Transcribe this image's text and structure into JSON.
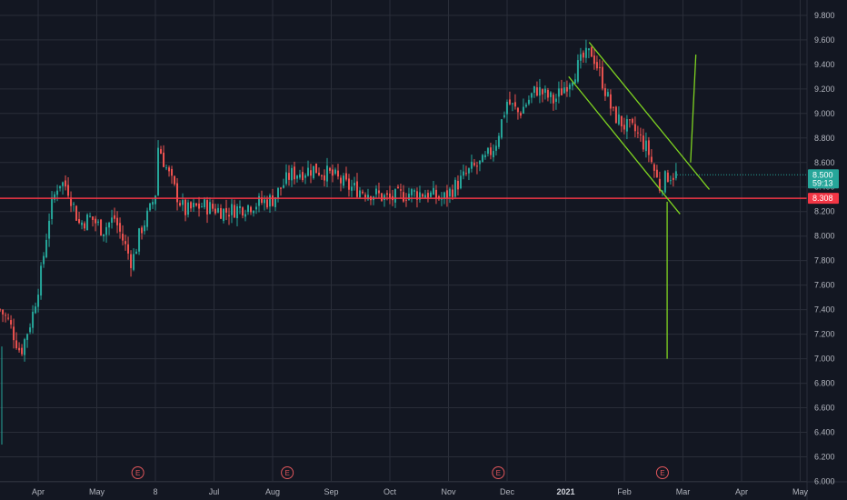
{
  "chart_data": {
    "type": "candlestick",
    "price_axis": {
      "ticks": [
        "9.800",
        "9.600",
        "9.400",
        "9.200",
        "9.000",
        "8.800",
        "8.600",
        "8.400",
        "8.200",
        "8.000",
        "7.800",
        "7.600",
        "7.400",
        "7.200",
        "7.000",
        "6.800",
        "6.600",
        "6.400",
        "6.200",
        "6.000"
      ],
      "ylim": [
        6.0,
        9.9
      ],
      "scale": "linear"
    },
    "time_axis": {
      "ticks": [
        {
          "label": "Apr",
          "x_month": 3.0
        },
        {
          "label": "May",
          "x_month": 4.0
        },
        {
          "label": "8",
          "x_month": 5.0
        },
        {
          "label": "Jul",
          "x_month": 6.0
        },
        {
          "label": "Aug",
          "x_month": 7.0
        },
        {
          "label": "Sep",
          "x_month": 8.0
        },
        {
          "label": "Oct",
          "x_month": 9.0
        },
        {
          "label": "Nov",
          "x_month": 10.0
        },
        {
          "label": "Dec",
          "x_month": 11.0
        },
        {
          "label": "2021",
          "x_month": 12.0,
          "bold": true
        },
        {
          "label": "Feb",
          "x_month": 13.0
        },
        {
          "label": "Mar",
          "x_month": 14.0
        },
        {
          "label": "Apr",
          "x_month": 15.0
        },
        {
          "label": "May",
          "x_month": 16.0
        }
      ]
    },
    "anchors": [
      [
        2.35,
        7.4
      ],
      [
        2.5,
        7.3
      ],
      [
        2.7,
        7.05
      ],
      [
        2.9,
        7.35
      ],
      [
        3.05,
        7.7
      ],
      [
        3.2,
        8.2
      ],
      [
        3.35,
        8.45
      ],
      [
        3.5,
        8.4
      ],
      [
        3.7,
        8.1
      ],
      [
        3.9,
        8.15
      ],
      [
        4.1,
        8.05
      ],
      [
        4.3,
        8.15
      ],
      [
        4.5,
        7.9
      ],
      [
        4.6,
        7.78
      ],
      [
        4.75,
        8.05
      ],
      [
        4.9,
        8.2
      ],
      [
        5.0,
        8.35
      ],
      [
        5.05,
        8.75
      ],
      [
        5.15,
        8.6
      ],
      [
        5.35,
        8.35
      ],
      [
        5.5,
        8.2
      ],
      [
        5.8,
        8.25
      ],
      [
        6.2,
        8.2
      ],
      [
        6.6,
        8.25
      ],
      [
        7.0,
        8.3
      ],
      [
        7.3,
        8.5
      ],
      [
        7.7,
        8.55
      ],
      [
        8.0,
        8.5
      ],
      [
        8.3,
        8.4
      ],
      [
        8.7,
        8.35
      ],
      [
        9.0,
        8.3
      ],
      [
        9.3,
        8.35
      ],
      [
        9.6,
        8.35
      ],
      [
        9.9,
        8.3
      ],
      [
        10.2,
        8.45
      ],
      [
        10.4,
        8.55
      ],
      [
        10.6,
        8.6
      ],
      [
        10.8,
        8.75
      ],
      [
        11.0,
        9.1
      ],
      [
        11.2,
        9.0
      ],
      [
        11.5,
        9.2
      ],
      [
        11.8,
        9.1
      ],
      [
        12.1,
        9.3
      ],
      [
        12.3,
        9.45
      ],
      [
        12.45,
        9.5
      ],
      [
        12.6,
        9.3
      ],
      [
        12.8,
        9.0
      ],
      [
        13.0,
        8.9
      ],
      [
        13.2,
        8.85
      ],
      [
        13.4,
        8.7
      ],
      [
        13.6,
        8.4
      ],
      [
        13.75,
        8.5
      ],
      [
        13.9,
        8.5
      ]
    ],
    "horizontal_line": {
      "price": 8.308,
      "label": "8.308",
      "color": "#f23645"
    },
    "last_price": {
      "price": 8.5,
      "label": "8.500",
      "countdown": "59:13",
      "color": "#26a69a"
    },
    "trend_lines": [
      {
        "from": [
          12.4,
          9.58
        ],
        "to": [
          14.45,
          8.38
        ],
        "color": "#7ed321"
      },
      {
        "from": [
          12.05,
          9.3
        ],
        "to": [
          13.95,
          8.18
        ],
        "color": "#7ed321"
      },
      {
        "from": [
          13.73,
          8.28
        ],
        "to": [
          13.73,
          7.0
        ],
        "color": "#7ed321"
      },
      {
        "from": [
          14.13,
          8.6
        ],
        "to": [
          14.22,
          9.48
        ],
        "color": "#7ed321"
      }
    ],
    "earnings_markers": [
      4.7,
      7.25,
      10.85,
      13.65
    ],
    "earnings_label": "E",
    "colors": {
      "background": "#131722",
      "up": "#26a69a",
      "down": "#ef5350",
      "grid": "#2a2e39",
      "axis_text": "#b2b5be"
    }
  }
}
